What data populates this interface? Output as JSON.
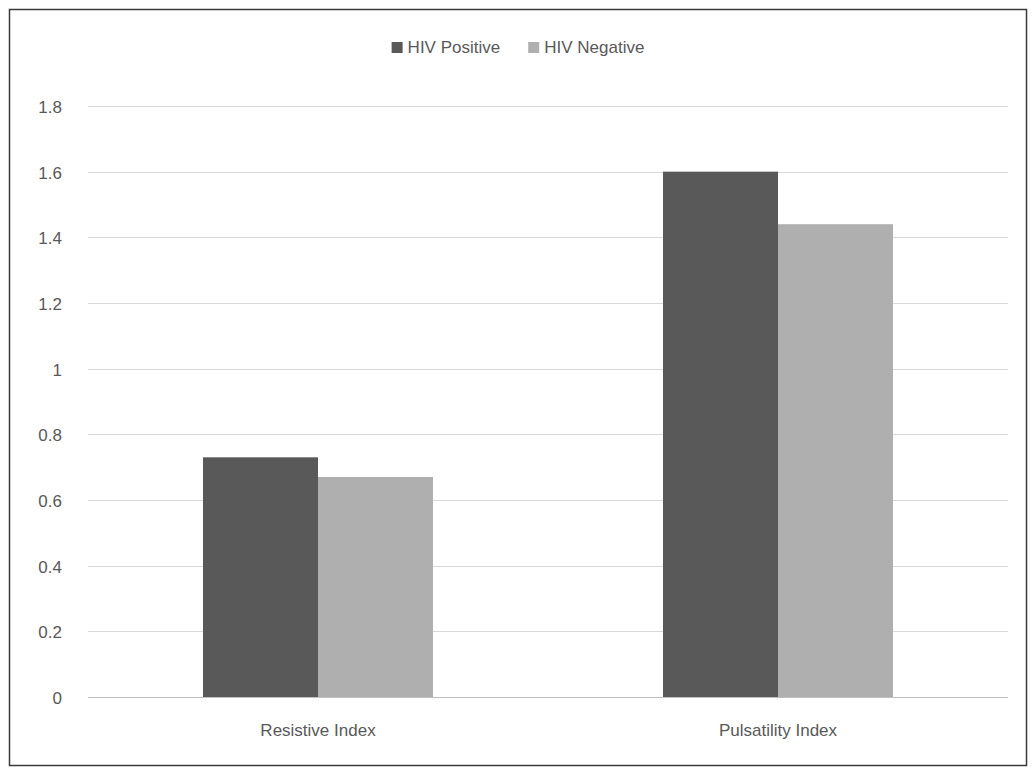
{
  "chart_data": {
    "type": "bar",
    "categories": [
      "Resistive Index",
      "Pulsatility Index"
    ],
    "series": [
      {
        "name": "HIV Positive",
        "color": "#595959",
        "values": [
          0.73,
          1.6
        ]
      },
      {
        "name": "HIV Negative",
        "color": "#afafaf",
        "values": [
          0.67,
          1.44
        ]
      }
    ],
    "ylim": [
      0,
      1.8
    ],
    "yticks": [
      0,
      0.2,
      0.4,
      0.6,
      0.8,
      1,
      1.2,
      1.4,
      1.6,
      1.8
    ],
    "grid": true,
    "legend": "top"
  }
}
